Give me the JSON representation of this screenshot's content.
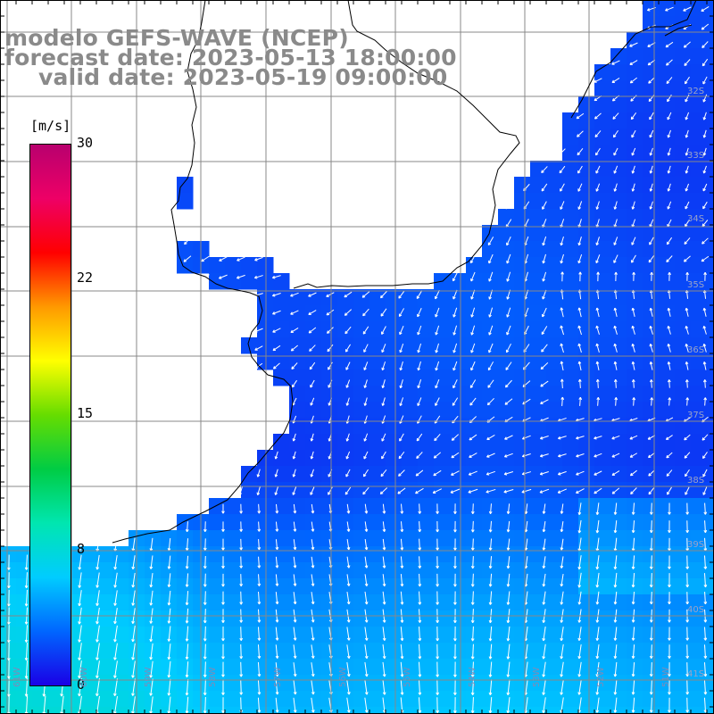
{
  "header": {
    "model": "modelo GEFS-WAVE (NCEP)",
    "forecast_date": "forecast date: 2023-05-13 18:00:00",
    "valid_date": "valid date: 2023-05-19 09:00:00"
  },
  "colorbar": {
    "unit": "[m/s]",
    "ticks": [
      {
        "label": "30",
        "value": 30
      },
      {
        "label": "22",
        "value": 22
      },
      {
        "label": "15",
        "value": 15
      },
      {
        "label": "8",
        "value": 8
      },
      {
        "label": "0",
        "value": 0
      }
    ],
    "colors": [
      "#1a00e6",
      "#0066ff",
      "#00ccff",
      "#00e6b0",
      "#00cc44",
      "#66dd00",
      "#ffff00",
      "#ff9900",
      "#ff0000",
      "#ee0066",
      "#b8006e"
    ]
  },
  "map": {
    "lat_labels": [
      "32S",
      "33S",
      "34S",
      "35S",
      "36S",
      "37S",
      "38S",
      "39S",
      "40S",
      "41S"
    ],
    "lon_labels": [
      "61W",
      "60W",
      "59W",
      "58W",
      "57W",
      "56W",
      "55W",
      "54W",
      "53W",
      "52W",
      "51W"
    ],
    "land_color": "#ffffff",
    "grid_color": "#888888",
    "coast_color": "#000000",
    "arrow_color": "#ffffff"
  }
}
